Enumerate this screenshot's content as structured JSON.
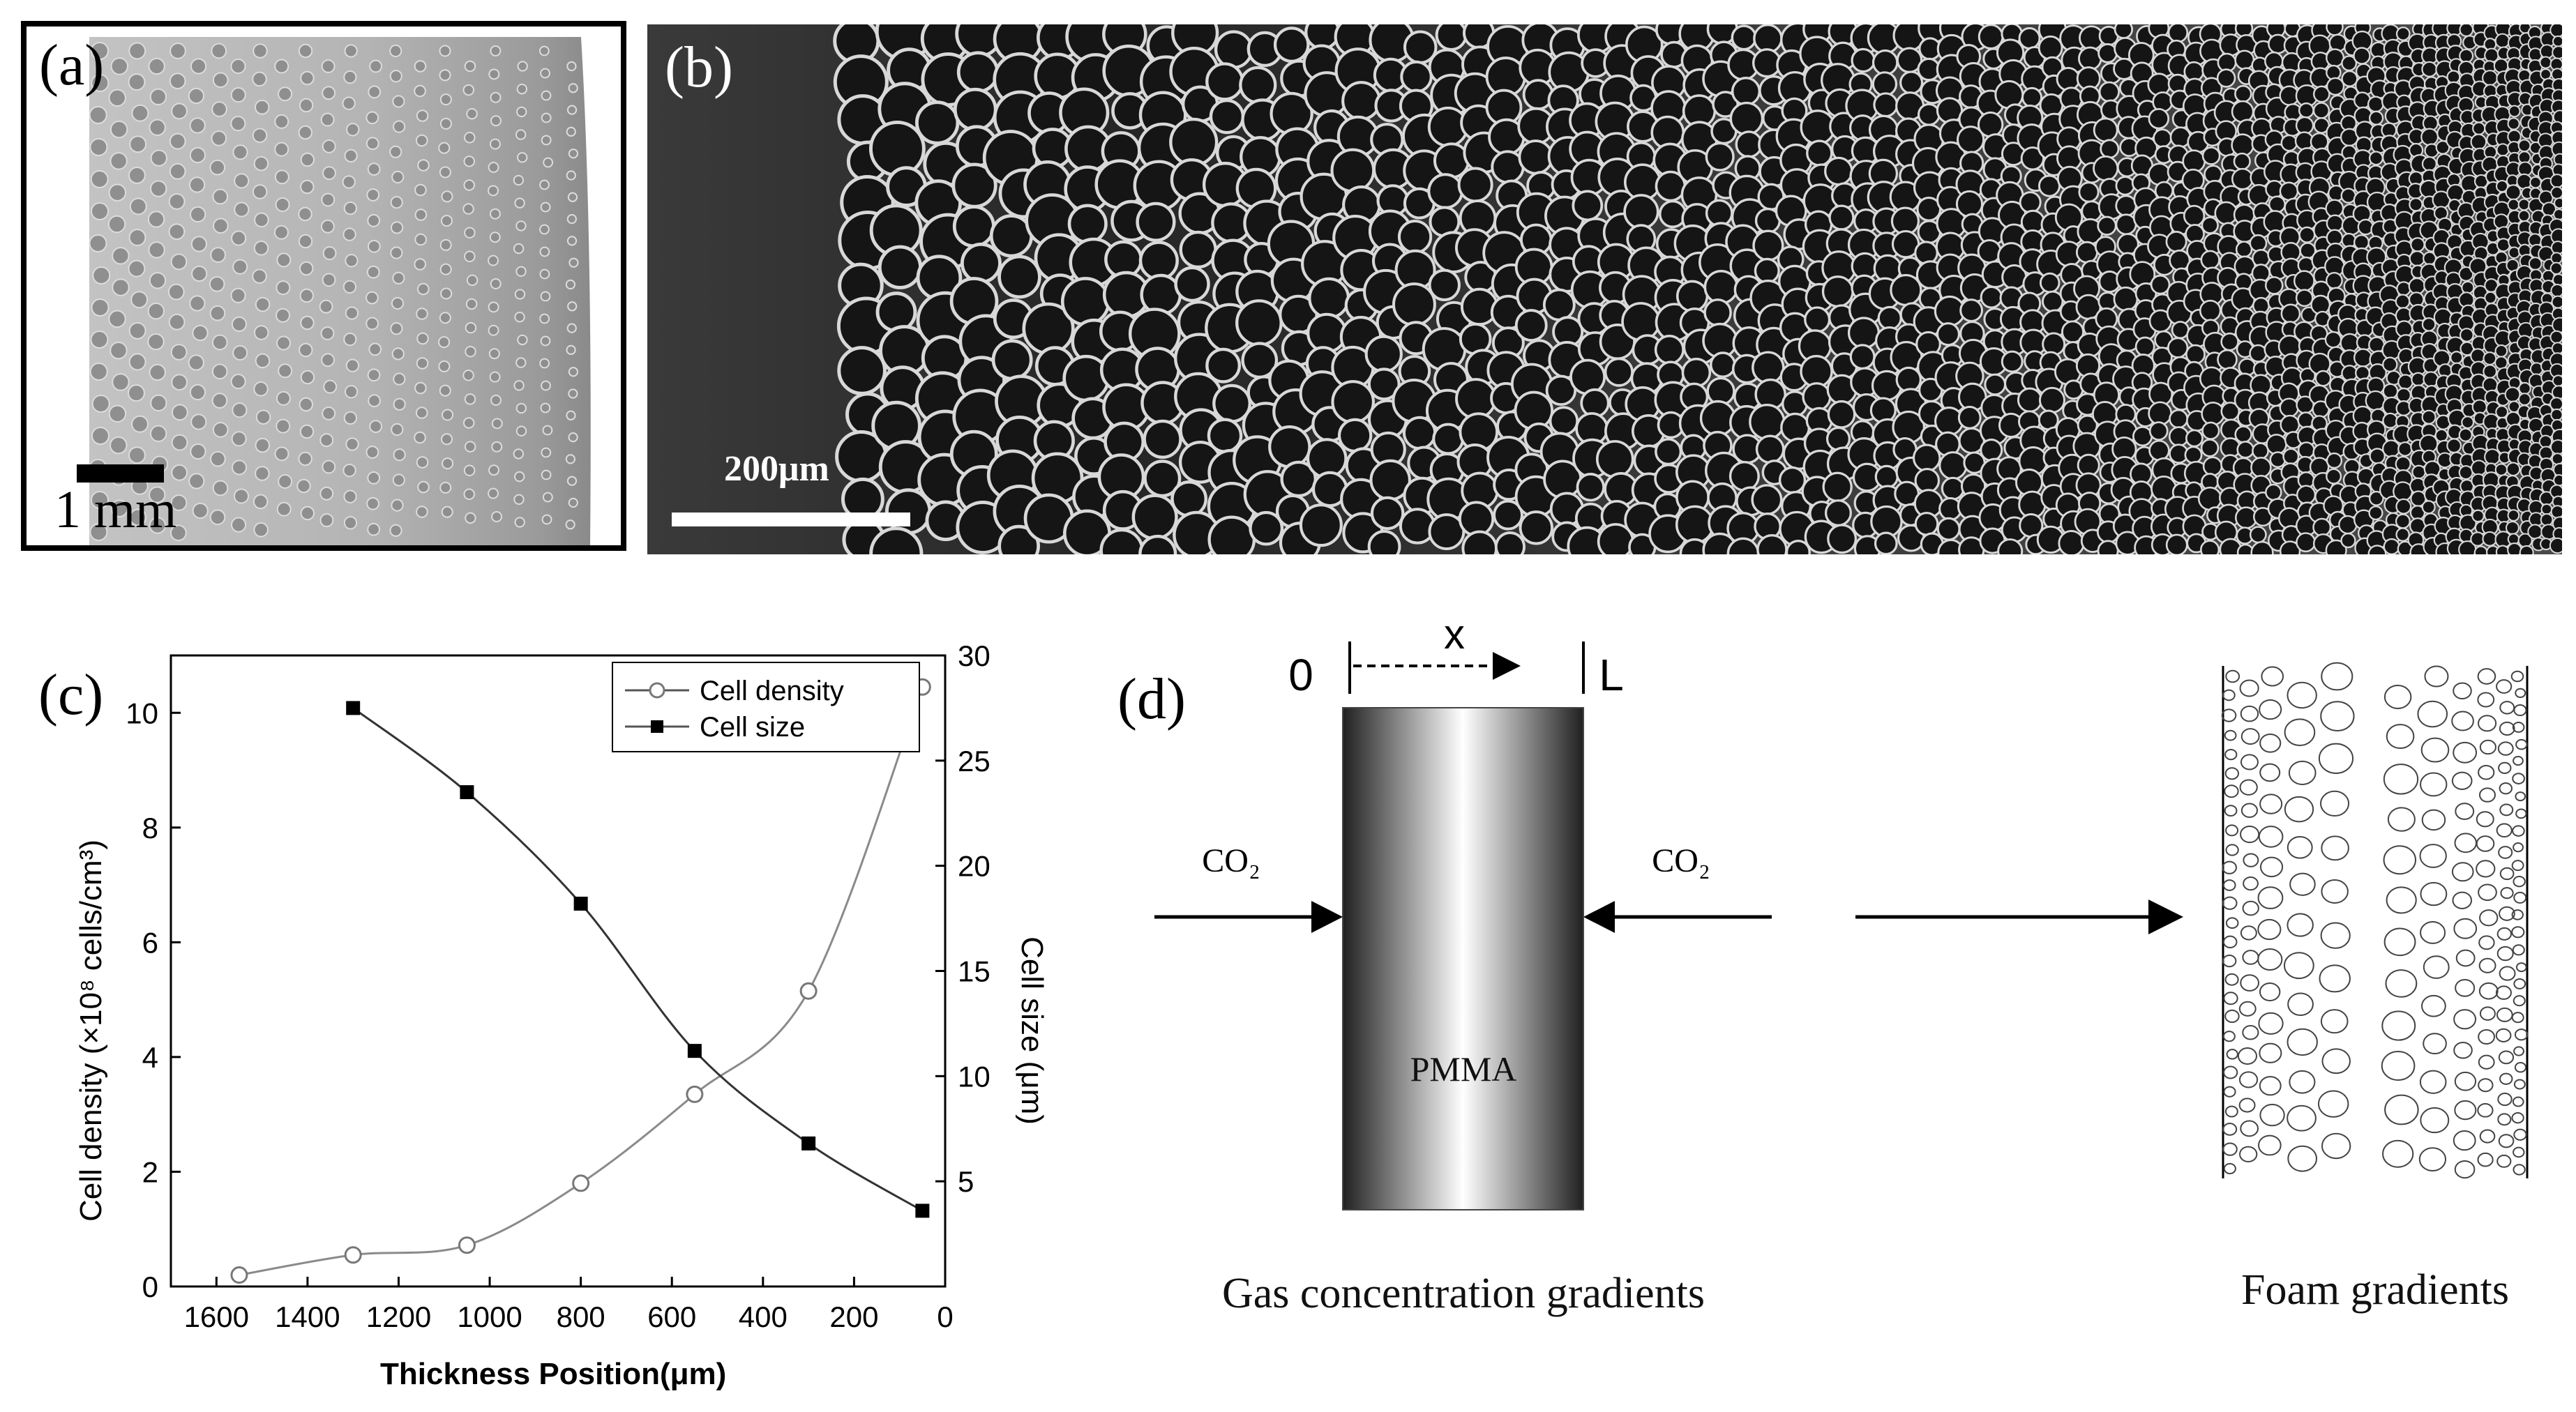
{
  "panels": {
    "a": {
      "letter": "(a)",
      "scale_label": "1 mm"
    },
    "b": {
      "letter": "(b)",
      "scale_label": "200μm"
    },
    "c": {
      "letter": "(c)"
    },
    "d": {
      "letter": "(d)",
      "axis_origin": "0",
      "axis_variable": "x",
      "axis_end": "L",
      "left_gas": "CO₂",
      "right_gas": "CO₂",
      "material_label": "PMMA",
      "left_caption": "Gas concentration gradients",
      "right_caption": "Foam gradients"
    }
  },
  "chart_data": {
    "type": "scatter",
    "xlabel": "Thickness Position(μm)",
    "ylabel_left": "Cell density (×10⁸ cells/cm³)",
    "ylabel_right": "Cell size (μm)",
    "xlim": [
      1700,
      0
    ],
    "x_reversed": true,
    "ylim_left": [
      0,
      11
    ],
    "ylim_right": [
      0,
      30
    ],
    "x_ticks": [
      1600,
      1400,
      1200,
      1000,
      800,
      600,
      400,
      200,
      0
    ],
    "y_left_ticks": [
      0,
      2,
      4,
      6,
      8,
      10
    ],
    "y_right_ticks": [
      5,
      10,
      15,
      20,
      25,
      30
    ],
    "legend_position": "top-right",
    "series": [
      {
        "name": "Cell density",
        "marker": "open-circle",
        "axis": "left",
        "x": [
          1550,
          1300,
          1050,
          800,
          550,
          300,
          50
        ],
        "y": [
          0.2,
          0.55,
          0.72,
          1.8,
          3.35,
          5.15,
          10.45
        ]
      },
      {
        "name": "Cell size",
        "marker": "filled-square",
        "axis": "right",
        "x": [
          1300,
          1050,
          800,
          550,
          300,
          50
        ],
        "y": [
          27.5,
          23.5,
          18.2,
          11.2,
          6.8,
          3.6
        ]
      }
    ]
  }
}
